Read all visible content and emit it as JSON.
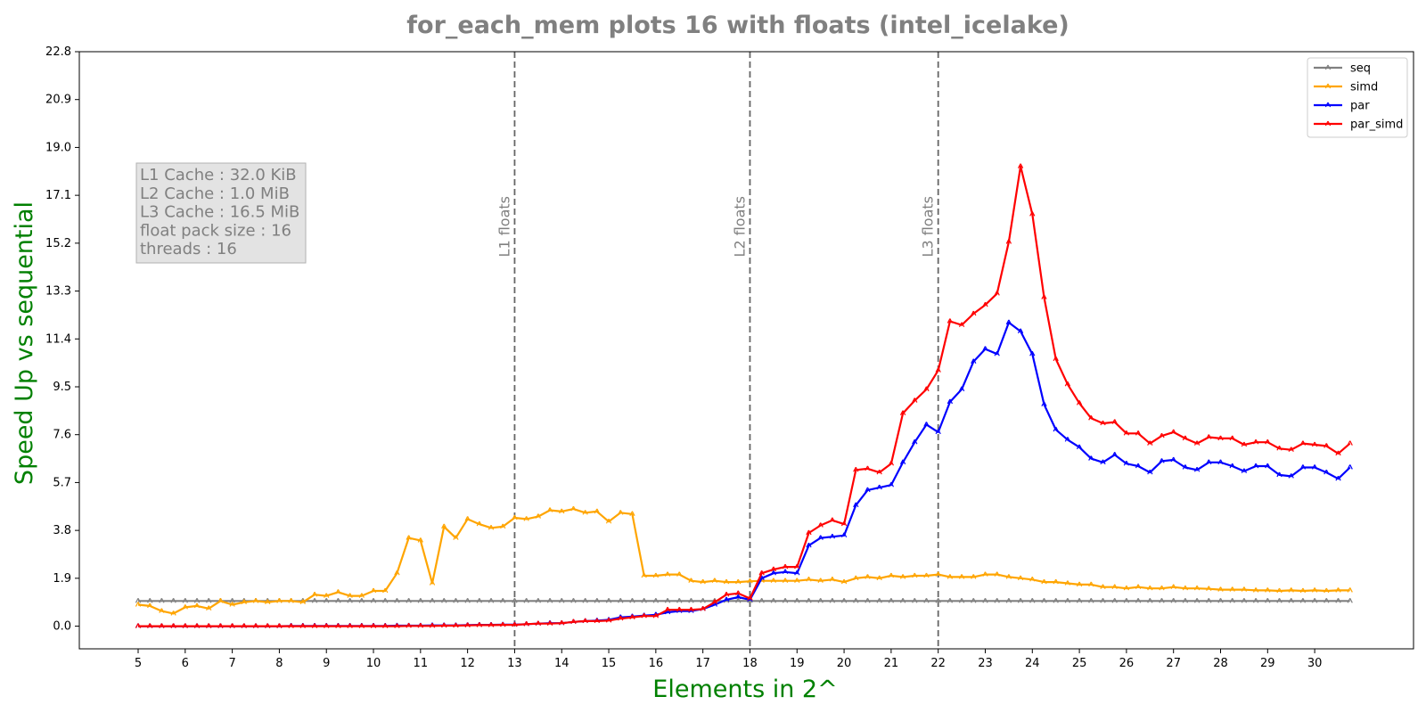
{
  "chart_data": {
    "type": "line",
    "title": "for_each_mem plots 16 with floats  (intel_icelake)",
    "xlabel": "Elements in 2^",
    "ylabel": "Speed Up vs sequential",
    "xlim": [
      3.75,
      32.1
    ],
    "ylim": [
      -0.9,
      22.8
    ],
    "yticks": [
      0.0,
      1.9,
      3.8,
      5.7,
      7.6,
      9.5,
      11.4,
      13.3,
      15.2,
      17.1,
      19.0,
      20.9,
      22.8
    ],
    "ytick_labels": [
      "0.0",
      "1.9",
      "3.8",
      "5.7",
      "7.6",
      "9.5",
      "11.4",
      "13.3",
      "15.2",
      "17.1",
      "19.0",
      "20.9",
      "22.8"
    ],
    "xticks": [
      5,
      6,
      7,
      8,
      9,
      10,
      11,
      12,
      13,
      14,
      15,
      16,
      17,
      18,
      19,
      20,
      21,
      22,
      23,
      24,
      25,
      26,
      27,
      28,
      29,
      30
    ],
    "xtick_labels": [
      "5",
      "6",
      "7",
      "8",
      "9",
      "10",
      "11",
      "12",
      "13",
      "14",
      "15",
      "16",
      "17",
      "18",
      "19",
      "20",
      "21",
      "22",
      "23",
      "24",
      "25",
      "26",
      "27",
      "28",
      "29",
      "30"
    ],
    "x": [
      5.0,
      5.25,
      5.5,
      5.75,
      6.0,
      6.25,
      6.5,
      6.75,
      7.0,
      7.25,
      7.5,
      7.75,
      8.0,
      8.25,
      8.5,
      8.75,
      9.0,
      9.25,
      9.5,
      9.75,
      10.0,
      10.25,
      10.5,
      10.75,
      11.0,
      11.25,
      11.5,
      11.75,
      12.0,
      12.25,
      12.5,
      12.75,
      13.0,
      13.25,
      13.5,
      13.75,
      14.0,
      14.25,
      14.5,
      14.75,
      15.0,
      15.25,
      15.5,
      15.75,
      16.0,
      16.25,
      16.5,
      16.75,
      17.0,
      17.25,
      17.5,
      17.75,
      18.0,
      18.25,
      18.5,
      18.75,
      19.0,
      19.25,
      19.5,
      19.75,
      20.0,
      20.25,
      20.5,
      20.75,
      21.0,
      21.25,
      21.5,
      21.75,
      22.0,
      22.25,
      22.5,
      22.75,
      23.0,
      23.25,
      23.5,
      23.75,
      24.0,
      24.25,
      24.5,
      24.75,
      25.0,
      25.25,
      25.5,
      25.75,
      26.0,
      26.25,
      26.5,
      26.75,
      27.0,
      27.25,
      27.5,
      27.75,
      28.0,
      28.25,
      28.5,
      28.75,
      29.0,
      29.25,
      29.5,
      29.75,
      30.0,
      30.25,
      30.5,
      30.75
    ],
    "series": [
      {
        "name": "seq",
        "color": "#808080",
        "values": [
          1.0,
          1.0,
          1.0,
          1.0,
          1.0,
          1.0,
          1.0,
          1.0,
          1.0,
          1.0,
          1.0,
          1.0,
          1.0,
          1.0,
          1.0,
          1.0,
          1.0,
          1.0,
          1.0,
          1.0,
          1.0,
          1.0,
          1.0,
          1.0,
          1.0,
          1.0,
          1.0,
          1.0,
          1.0,
          1.0,
          1.0,
          1.0,
          1.0,
          1.0,
          1.0,
          1.0,
          1.0,
          1.0,
          1.0,
          1.0,
          1.0,
          1.0,
          1.0,
          1.0,
          1.0,
          1.0,
          1.0,
          1.0,
          1.0,
          1.0,
          1.0,
          1.0,
          1.0,
          1.0,
          1.0,
          1.0,
          1.0,
          1.0,
          1.0,
          1.0,
          1.0,
          1.0,
          1.0,
          1.0,
          1.0,
          1.0,
          1.0,
          1.0,
          1.0,
          1.0,
          1.0,
          1.0,
          1.0,
          1.0,
          1.0,
          1.0,
          1.0,
          1.0,
          1.0,
          1.0,
          1.0,
          1.0,
          1.0,
          1.0,
          1.0,
          1.0,
          1.0,
          1.0,
          1.0,
          1.0,
          1.0,
          1.0,
          1.0,
          1.0,
          1.0,
          1.0,
          1.0,
          1.0,
          1.0,
          1.0,
          1.0,
          1.0,
          1.0,
          1.0
        ]
      },
      {
        "name": "simd",
        "color": "#ffa500",
        "values": [
          0.85,
          0.8,
          0.6,
          0.5,
          0.75,
          0.8,
          0.7,
          1.0,
          0.85,
          0.95,
          1.0,
          0.95,
          1.0,
          1.0,
          0.95,
          1.25,
          1.2,
          1.35,
          1.2,
          1.2,
          1.4,
          1.4,
          2.1,
          3.5,
          3.4,
          1.7,
          3.95,
          3.5,
          4.25,
          4.05,
          3.9,
          3.95,
          4.3,
          4.25,
          4.35,
          4.6,
          4.55,
          4.65,
          4.5,
          4.55,
          4.15,
          4.5,
          4.45,
          2.0,
          2.0,
          2.05,
          2.05,
          1.8,
          1.75,
          1.8,
          1.75,
          1.75,
          1.78,
          1.8,
          1.8,
          1.8,
          1.8,
          1.85,
          1.8,
          1.85,
          1.75,
          1.9,
          1.95,
          1.9,
          2.0,
          1.95,
          2.0,
          2.0,
          2.05,
          1.95,
          1.95,
          1.95,
          2.05,
          2.05,
          1.95,
          1.9,
          1.85,
          1.75,
          1.75,
          1.7,
          1.65,
          1.65,
          1.55,
          1.55,
          1.5,
          1.55,
          1.5,
          1.5,
          1.55,
          1.5,
          1.5,
          1.48,
          1.45,
          1.45,
          1.45,
          1.42,
          1.42,
          1.4,
          1.42,
          1.4,
          1.42,
          1.4,
          1.42,
          1.42
        ]
      },
      {
        "name": "par",
        "color": "#0000ff",
        "values": [
          0.0,
          0.0,
          0.0,
          0.0,
          0.0,
          0.0,
          0.0,
          0.0,
          0.0,
          0.0,
          0.0,
          0.0,
          0.0,
          0.01,
          0.01,
          0.01,
          0.01,
          0.01,
          0.01,
          0.01,
          0.01,
          0.01,
          0.02,
          0.02,
          0.02,
          0.03,
          0.03,
          0.03,
          0.04,
          0.05,
          0.05,
          0.06,
          0.06,
          0.08,
          0.1,
          0.12,
          0.12,
          0.17,
          0.2,
          0.22,
          0.25,
          0.35,
          0.38,
          0.42,
          0.45,
          0.55,
          0.6,
          0.6,
          0.68,
          0.85,
          1.05,
          1.15,
          1.05,
          1.9,
          2.1,
          2.15,
          2.1,
          3.2,
          3.5,
          3.55,
          3.6,
          4.8,
          5.4,
          5.5,
          5.6,
          6.5,
          7.3,
          8.0,
          7.7,
          8.9,
          9.4,
          10.5,
          11.0,
          10.8,
          12.05,
          11.7,
          10.8,
          8.8,
          7.8,
          7.4,
          7.1,
          6.65,
          6.5,
          6.8,
          6.45,
          6.35,
          6.1,
          6.55,
          6.6,
          6.3,
          6.2,
          6.5,
          6.5,
          6.35,
          6.15,
          6.35,
          6.35,
          6.0,
          5.95,
          6.3,
          6.3,
          6.1,
          5.85,
          6.3
        ]
      },
      {
        "name": "par_simd",
        "color": "#ff0000",
        "values": [
          0.0,
          0.0,
          0.0,
          0.0,
          0.0,
          0.0,
          0.0,
          0.0,
          0.0,
          0.0,
          0.0,
          0.0,
          0.0,
          0.0,
          0.0,
          0.0,
          0.0,
          0.0,
          0.0,
          0.0,
          0.0,
          0.0,
          0.0,
          0.01,
          0.01,
          0.01,
          0.02,
          0.02,
          0.03,
          0.04,
          0.04,
          0.05,
          0.05,
          0.08,
          0.1,
          0.1,
          0.12,
          0.17,
          0.2,
          0.2,
          0.22,
          0.3,
          0.35,
          0.4,
          0.4,
          0.65,
          0.65,
          0.65,
          0.68,
          0.95,
          1.25,
          1.3,
          1.1,
          2.1,
          2.25,
          2.35,
          2.35,
          3.7,
          4.0,
          4.2,
          4.05,
          6.2,
          6.25,
          6.1,
          6.45,
          8.45,
          8.95,
          9.4,
          10.15,
          12.1,
          11.95,
          12.4,
          12.75,
          13.2,
          15.25,
          18.25,
          16.35,
          13.05,
          10.6,
          9.6,
          8.85,
          8.25,
          8.05,
          8.1,
          7.65,
          7.65,
          7.25,
          7.55,
          7.7,
          7.45,
          7.25,
          7.5,
          7.45,
          7.45,
          7.2,
          7.3,
          7.3,
          7.05,
          7.0,
          7.25,
          7.2,
          7.15,
          6.85,
          7.25
        ]
      }
    ],
    "vlines": [
      {
        "x": 13,
        "label": "L1 floats"
      },
      {
        "x": 18,
        "label": "L2 floats"
      },
      {
        "x": 22,
        "label": "L3 floats"
      }
    ],
    "info_box": [
      "L1 Cache : 32.0 KiB",
      "L2 Cache : 1.0 MiB",
      "L3 Cache : 16.5 MiB",
      "float pack size : 16",
      "threads : 16"
    ],
    "legend_position": "top-right",
    "grid": false
  }
}
